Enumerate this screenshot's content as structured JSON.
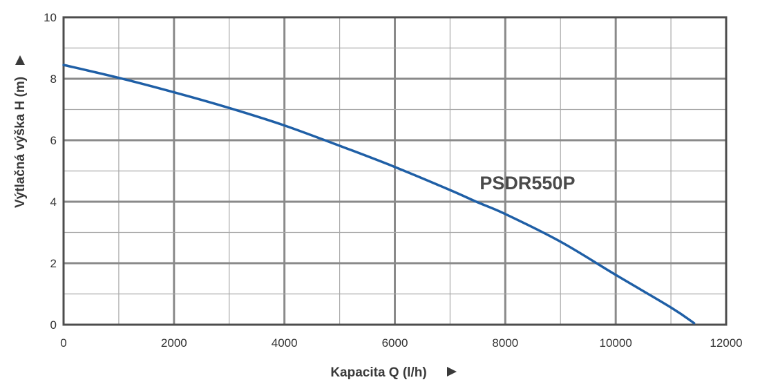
{
  "chart_data": {
    "type": "line",
    "xlabel": "Kapacita Q (l/h)",
    "ylabel": "Výtlačná výška H (m)",
    "xlim": [
      0,
      12000
    ],
    "ylim": [
      0,
      10
    ],
    "x_ticks": [
      "0",
      "2000",
      "4000",
      "6000",
      "8000",
      "10000",
      "12000"
    ],
    "y_ticks": [
      "0",
      "2",
      "4",
      "6",
      "8",
      "10"
    ],
    "x_minor_step": 1000,
    "y_minor_step": 1,
    "grid": true,
    "series": [
      {
        "name": "PSDR550P",
        "color": "#1f5fa6",
        "x": [
          0,
          1000,
          2000,
          3000,
          4000,
          5000,
          6000,
          7000,
          7500,
          8000,
          9000,
          10000,
          11000,
          11420
        ],
        "y": [
          8.45,
          8.03,
          7.56,
          7.05,
          6.48,
          5.82,
          5.13,
          4.38,
          3.98,
          3.6,
          2.7,
          1.62,
          0.56,
          0.05
        ]
      }
    ],
    "annotation_anchor": {
      "x": 7500,
      "y": 4.4
    },
    "colors": {
      "grid": "#a9a9a9",
      "grid_major": "#8a8a8a",
      "frame": "#4d4d4d",
      "text": "#333333"
    }
  }
}
